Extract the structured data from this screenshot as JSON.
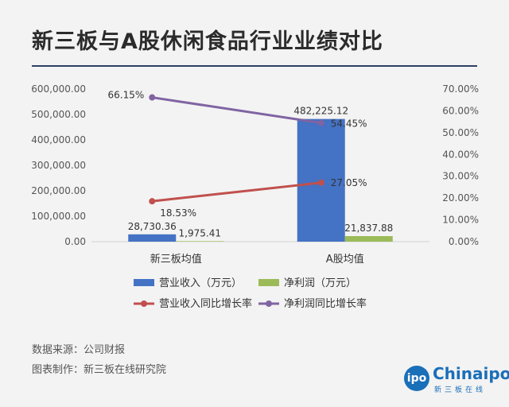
{
  "title": "新三板与A股休闲食品行业业绩对比",
  "chart_data": {
    "type": "bar",
    "categories": [
      "新三板均值",
      "A股均值"
    ],
    "series": [
      {
        "name": "营业收入（万元）",
        "kind": "bar",
        "axis": "left",
        "color": "#4472c4",
        "values": [
          28730.36,
          482225.12
        ],
        "labels": [
          "28,730.36",
          "482,225.12"
        ]
      },
      {
        "name": "净利润（万元）",
        "kind": "bar",
        "axis": "left",
        "color": "#9bbb59",
        "values": [
          1975.41,
          21837.88
        ],
        "labels": [
          "1,975.41",
          "21,837.88"
        ]
      },
      {
        "name": "营业收入同比增长率",
        "kind": "line",
        "axis": "right",
        "color": "#c0504d",
        "values": [
          18.53,
          27.05
        ],
        "labels": [
          "18.53%",
          "27.05%"
        ]
      },
      {
        "name": "净利润同比增长率",
        "kind": "line",
        "axis": "right",
        "color": "#8064a2",
        "values": [
          66.15,
          54.45
        ],
        "labels": [
          "66.15%",
          "54.45%"
        ]
      }
    ],
    "y_left": {
      "ylim": [
        0,
        600000
      ],
      "ticks": [
        "0.00",
        "100,000.00",
        "200,000.00",
        "300,000.00",
        "400,000.00",
        "500,000.00",
        "600,000.00"
      ]
    },
    "y_right": {
      "ylim": [
        0,
        70
      ],
      "ticks": [
        "0.00%",
        "10.00%",
        "20.00%",
        "30.00%",
        "40.00%",
        "50.00%",
        "60.00%",
        "70.00%"
      ]
    },
    "grid": false,
    "legend_position": "bottom"
  },
  "footer": {
    "source": "数据来源：公司财报",
    "maker": "图表制作：新三板在线研究院"
  },
  "logo": {
    "circle_text": "ipo",
    "name": "Chinaipo",
    "subtitle": "新三板在线"
  }
}
